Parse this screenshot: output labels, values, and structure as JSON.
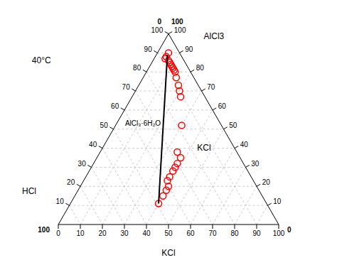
{
  "chart_data": {
    "type": "ternary",
    "grid": true,
    "axes": {
      "bottom": {
        "label": "KCl",
        "lim": [
          0,
          100
        ],
        "ticks": [
          0,
          10,
          20,
          30,
          40,
          50,
          60,
          70,
          80,
          90,
          100
        ]
      },
      "left": {
        "label": "HCl",
        "lim": [
          0,
          100
        ],
        "ticks": [
          10,
          20,
          30,
          40,
          50,
          60,
          70,
          80,
          90,
          100
        ]
      },
      "right": {
        "label": "AlCl3",
        "lim": [
          0,
          100
        ],
        "ticks": [
          10,
          20,
          30,
          40,
          50,
          60,
          70,
          80,
          90,
          100
        ]
      }
    },
    "corner_labels": [
      0,
      100,
      100,
      0
    ],
    "annotations": [
      "40°C",
      "AlCl₃·6H₂O",
      "KCl"
    ],
    "series": [
      {
        "type": "scatter",
        "marker": "circle",
        "color": "red",
        "values": [
          [
            5,
            90,
            5
          ],
          [
            5,
            88,
            7
          ],
          [
            5,
            87,
            8
          ],
          [
            7,
            86,
            7
          ],
          [
            8,
            85,
            7
          ],
          [
            9,
            84,
            7
          ],
          [
            10,
            83,
            7
          ],
          [
            11,
            82,
            7
          ],
          [
            12,
            81,
            7
          ],
          [
            13,
            80,
            7
          ],
          [
            15,
            77,
            8
          ],
          [
            18,
            73,
            9
          ],
          [
            20,
            70,
            10
          ],
          [
            22,
            67,
            11
          ],
          [
            30,
            52,
            18
          ],
          [
            35,
            38,
            27
          ],
          [
            38,
            35,
            27
          ],
          [
            38,
            32,
            30
          ],
          [
            38,
            30,
            32
          ],
          [
            38,
            28,
            34
          ],
          [
            38,
            25,
            37
          ],
          [
            38,
            23,
            39
          ],
          [
            40,
            20,
            40
          ],
          [
            40,
            18,
            42
          ],
          [
            40,
            15,
            45
          ],
          [
            40,
            11,
            49
          ]
        ]
      },
      {
        "type": "line",
        "line_style": "solid",
        "color": "black",
        "values": [
          [
            5,
            89,
            6
          ],
          [
            40,
            11,
            49
          ]
        ]
      }
    ]
  }
}
